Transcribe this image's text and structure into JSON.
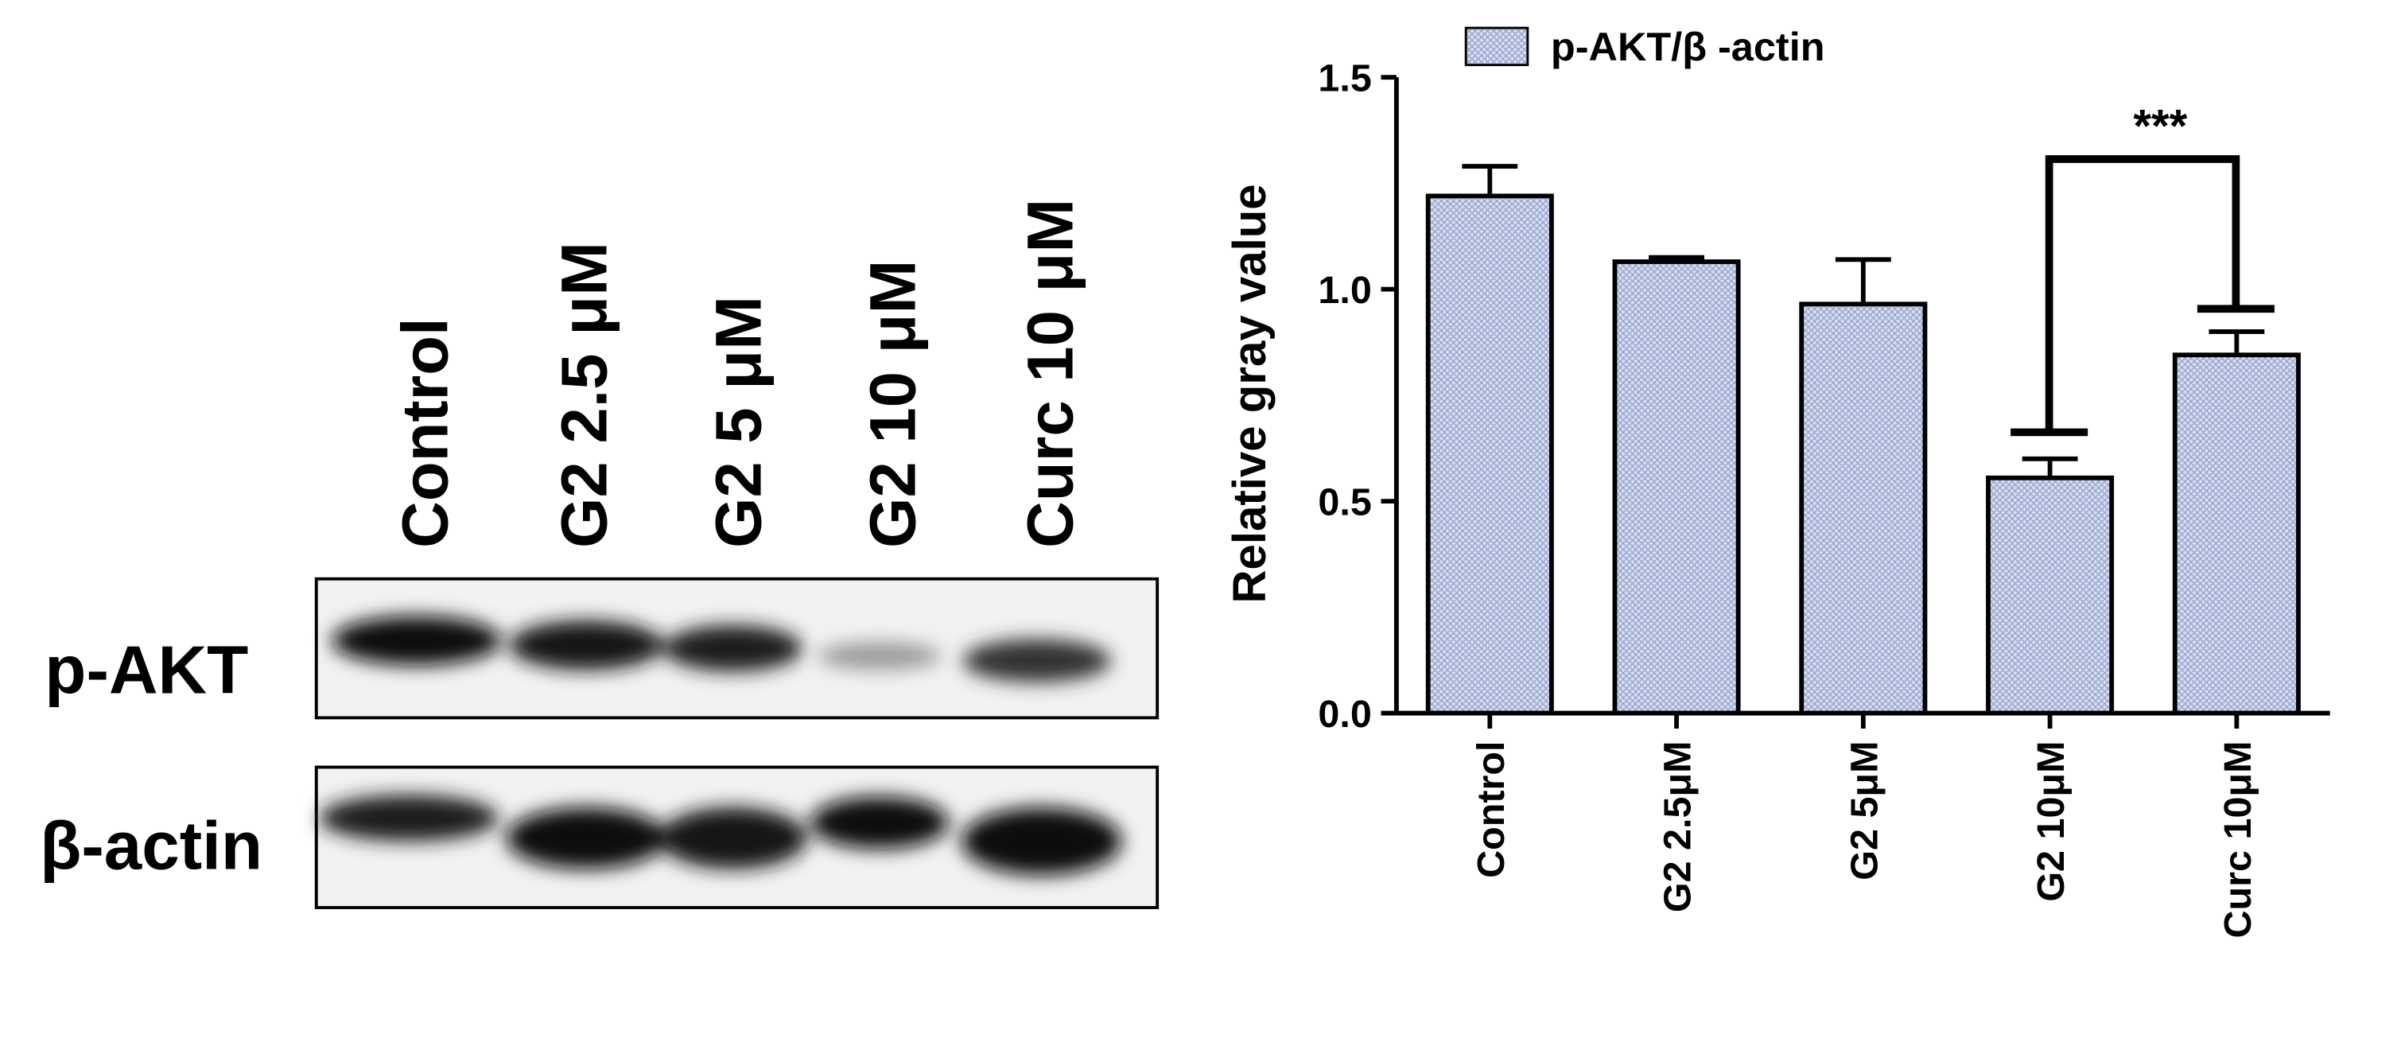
{
  "chart_data": {
    "type": "bar",
    "ylabel": "Relative gray value",
    "categories": [
      "Control",
      "G2 2.5μM",
      "G2 5μM",
      "G2 10μM",
      "Curc 10μM"
    ],
    "series": [
      {
        "name": "p-AKT/β -actin",
        "color": "#c5cde6",
        "values": [
          1.22,
          1.065,
          0.965,
          0.555,
          0.845
        ],
        "errors": [
          0.07,
          0.01,
          0.105,
          0.045,
          0.055
        ]
      }
    ],
    "ylim": [
      0,
      1.5
    ],
    "yticks": [
      {
        "value": 0,
        "label": "0.0"
      },
      {
        "value": 0.5,
        "label": "0.5"
      },
      {
        "value": 1.0,
        "label": "1.0"
      },
      {
        "value": 1.5,
        "label": "1.5"
      }
    ],
    "annotations": [
      {
        "text": "***"
      }
    ]
  },
  "blot": {
    "lanes": [
      "Control",
      "G2 2.5 μM",
      "G2 5 μM",
      "G2 10 μM",
      "Curc 10 μM"
    ],
    "rows": [
      "p-AKT",
      "β-actin"
    ]
  }
}
